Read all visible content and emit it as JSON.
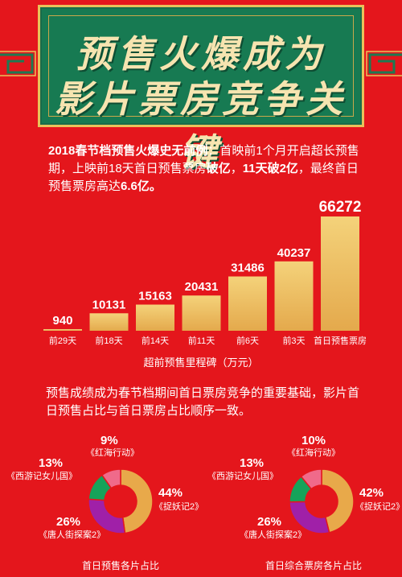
{
  "banner": {
    "line1": "预售火爆成为",
    "line2": "影片票房竞争关键"
  },
  "intro": {
    "lead": "2018春节档预售火爆史无前例",
    "text1": "：首映前1个月开启超长预售期，上映前18天首日预售票房",
    "bold1": "破亿",
    "text2": "，",
    "bold2": "11天破2亿",
    "text3": "，最终首日预售票房高达",
    "bold3": "6.6亿。"
  },
  "bar_caption": "超前预售里程碑（万元）",
  "paragraph2": "预售成绩成为春节档期间首日票房竞争的重要基础，影片首日预售占比与首日票房占比顺序一致。",
  "colors": {
    "background": "#e4161c",
    "banner_green": "#177a52",
    "gold": "#e8b84f",
    "slice_gold": "#e8a94a",
    "slice_purple": "#a020a8",
    "slice_green": "#16a35a",
    "slice_pink": "#f06a8a"
  },
  "chart_data": [
    {
      "type": "bar",
      "categories": [
        "前29天",
        "前18天",
        "前14天",
        "前11天",
        "前6天",
        "前3天",
        "首日预售票房"
      ],
      "values": [
        940,
        10131,
        15163,
        20431,
        31486,
        40237,
        66272
      ],
      "data_labels": [
        "940",
        "10131",
        "15163",
        "20431",
        "31486",
        "40237",
        "66272"
      ],
      "title": "",
      "xlabel": "超前预售里程碑（万元）",
      "ylabel": "",
      "ylim": [
        0,
        70000
      ],
      "grid": false
    },
    {
      "type": "pie",
      "title": "首日预售各片占比",
      "slices": [
        {
          "label": "《捉妖记2》",
          "value": 44,
          "pct": "44%"
        },
        {
          "label": "《唐人街探案2》",
          "value": 26,
          "pct": "26%"
        },
        {
          "label": "《西游记女儿国》",
          "value": 13,
          "pct": "13%"
        },
        {
          "label": "《红海行动》",
          "value": 9,
          "pct": "9%"
        }
      ]
    },
    {
      "type": "pie",
      "title": "首日综合票房各片占比",
      "slices": [
        {
          "label": "《捉妖记2》",
          "value": 42,
          "pct": "42%"
        },
        {
          "label": "《唐人街探案2》",
          "value": 26,
          "pct": "26%"
        },
        {
          "label": "《西游记女儿国》",
          "value": 13,
          "pct": "13%"
        },
        {
          "label": "《红海行动》",
          "value": 10,
          "pct": "10%"
        }
      ]
    }
  ]
}
